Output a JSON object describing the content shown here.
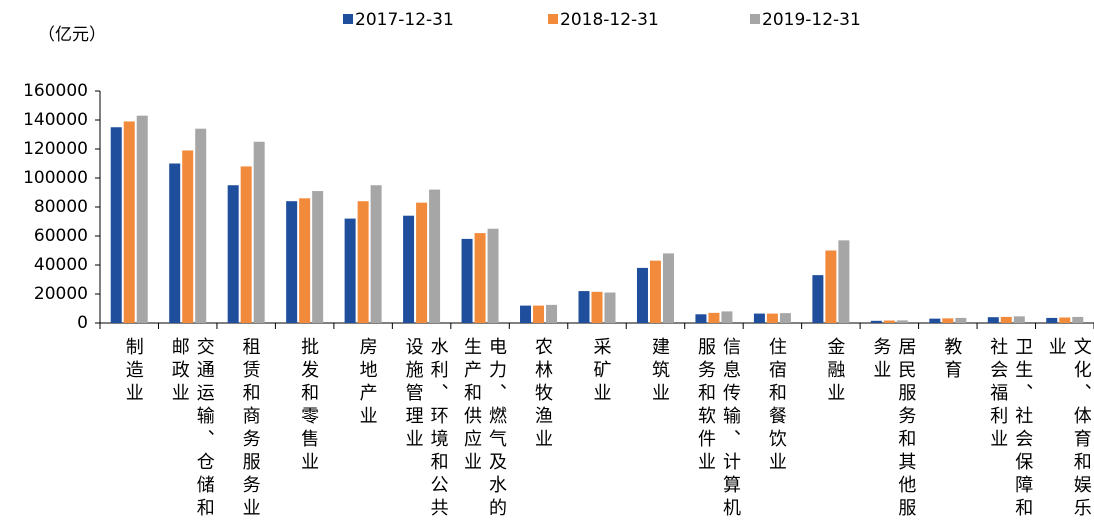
{
  "chart_data": {
    "type": "bar",
    "unit": "（亿元）",
    "categories": [
      "制造业",
      "交通运输、仓储和邮政业",
      "租赁和商务服务业",
      "批发和零售业",
      "房地产业",
      "水利、环境和公共设施管理业",
      "电力、燃气及水的生产和供应业",
      "农林牧渔业",
      "采矿业",
      "建筑业",
      "信息传输、计算机服务和软件业",
      "住宿和餐饮业",
      "金融业",
      "居民服务和其他服务业",
      "教育",
      "卫生、社会保障和社会福利业",
      "文化、体育和娱乐业"
    ],
    "series": [
      {
        "name": "2017-12-31",
        "color": "#1f4e9c",
        "values": [
          135000,
          110000,
          95000,
          84000,
          72000,
          74000,
          58000,
          12000,
          22000,
          38000,
          6000,
          6500,
          33000,
          1500,
          3000,
          4000,
          3500
        ]
      },
      {
        "name": "2018-12-31",
        "color": "#f28a3c",
        "values": [
          139000,
          119000,
          108000,
          86000,
          84000,
          83000,
          62000,
          12000,
          21500,
          43000,
          7000,
          6500,
          50000,
          1700,
          3200,
          4200,
          3800
        ]
      },
      {
        "name": "2019-12-31",
        "color": "#a6a6a6",
        "values": [
          143000,
          134000,
          125000,
          91000,
          95000,
          92000,
          65000,
          12500,
          21000,
          48000,
          8000,
          6800,
          57000,
          1800,
          3500,
          4600,
          4200
        ]
      }
    ],
    "ylim": [
      0,
      160000
    ],
    "yticks": [
      0,
      20000,
      40000,
      60000,
      80000,
      100000,
      120000,
      140000,
      160000
    ],
    "legend": "top",
    "grid": false
  }
}
